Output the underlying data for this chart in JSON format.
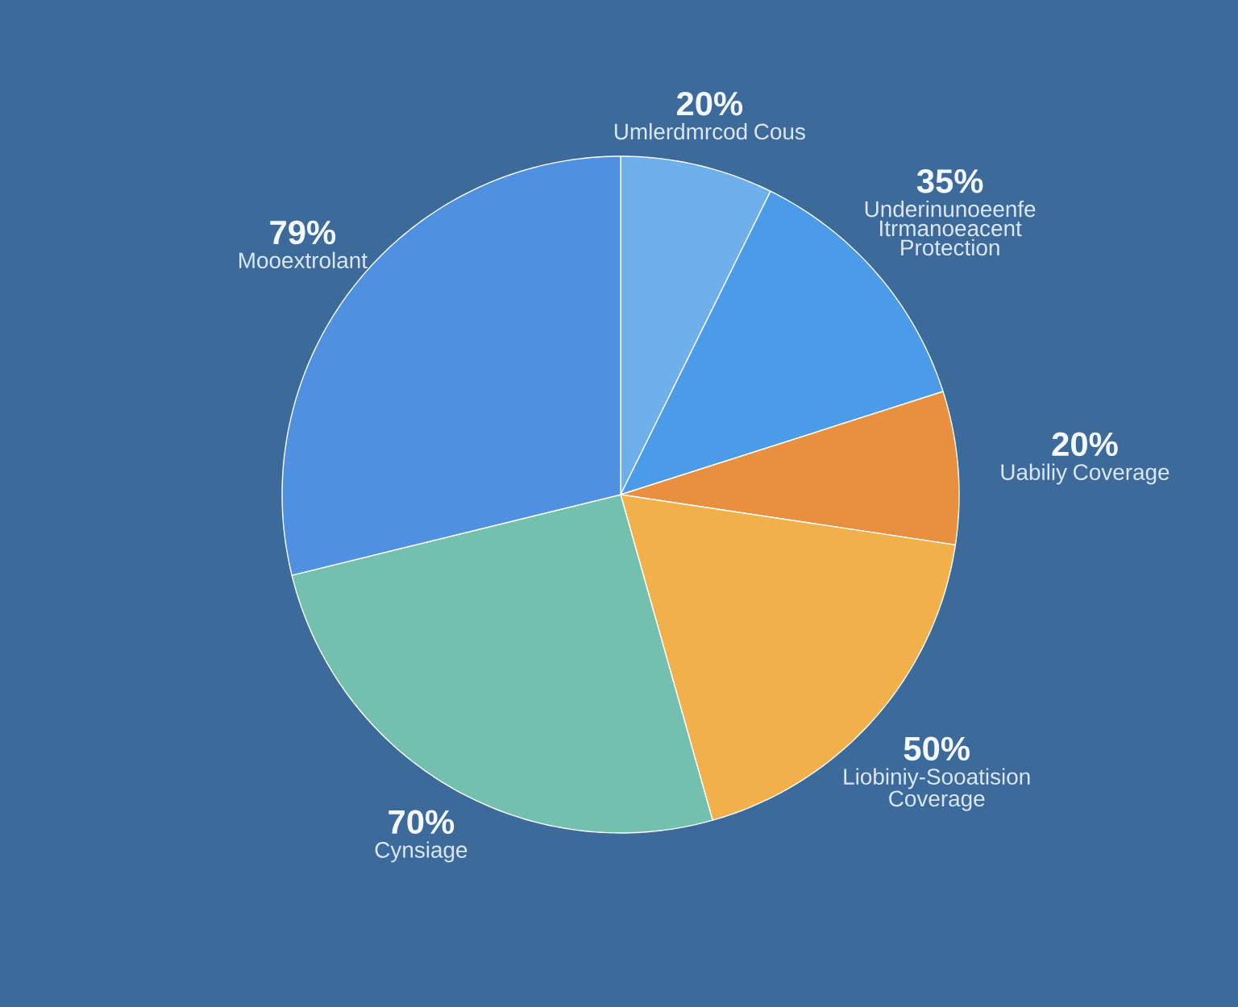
{
  "chart_data": {
    "type": "pie",
    "categories": [
      "Umlerdmrcod Cous",
      "Underinunoeenfe Itrmanoeacent Protection",
      "Uabiliy Coverage",
      "Liobiniy-Sooatision Coverage",
      "Cynsiage",
      "Mooextrolant"
    ],
    "values": [
      20,
      35,
      20,
      50,
      70,
      79
    ],
    "value_labels": [
      "20%",
      "35%",
      "20%",
      "50%",
      "70%",
      "79%"
    ],
    "colors": [
      "#6db0ec",
      "#4b9be8",
      "#e98f40",
      "#f2b04b",
      "#72c0ad",
      "#5090e0"
    ]
  }
}
